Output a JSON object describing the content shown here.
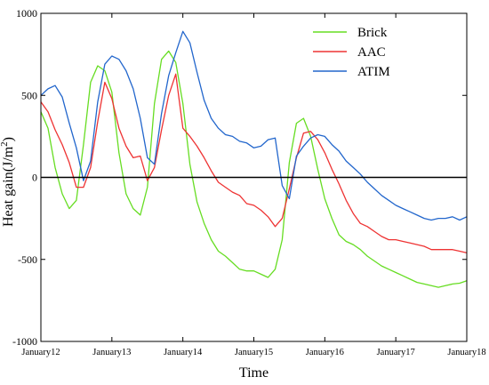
{
  "chart_data": {
    "type": "line",
    "title": "",
    "xlabel": "Time",
    "ylabel": "Heat gain(J/m²)",
    "ylabel_base": "Heat gain(J/m",
    "ylabel_sup": "2",
    "ylabel_tail": ")",
    "xlim": [
      12,
      18
    ],
    "ylim": [
      -1000,
      1000
    ],
    "yticks": [
      -1000,
      -500,
      0,
      500,
      1000
    ],
    "yticks_text": [
      "-1000",
      "-500",
      "0",
      "500",
      "1000"
    ],
    "xticks": [
      12,
      13,
      14,
      15,
      16,
      17,
      18
    ],
    "xticks_text": [
      "January12",
      "January13",
      "January14",
      "January15",
      "January16",
      "January17",
      "January18"
    ],
    "zero_line": true,
    "grid": false,
    "legend_position": "top-right",
    "series": [
      {
        "name": "Brick",
        "color": "#66dd22",
        "x": [
          12.0,
          12.1,
          12.2,
          12.3,
          12.4,
          12.5,
          12.6,
          12.7,
          12.8,
          12.9,
          13.0,
          13.1,
          13.2,
          13.3,
          13.4,
          13.5,
          13.6,
          13.7,
          13.8,
          13.9,
          14.0,
          14.1,
          14.2,
          14.3,
          14.4,
          14.5,
          14.6,
          14.7,
          14.8,
          14.9,
          15.0,
          15.1,
          15.2,
          15.3,
          15.4,
          15.5,
          15.6,
          15.7,
          15.8,
          15.9,
          16.0,
          16.1,
          16.2,
          16.3,
          16.4,
          16.5,
          16.6,
          16.7,
          16.8,
          16.9,
          17.0,
          17.1,
          17.2,
          17.3,
          17.4,
          17.5,
          17.6,
          17.7,
          17.8,
          17.9,
          18.0
        ],
        "values": [
          400,
          300,
          60,
          -100,
          -190,
          -140,
          200,
          580,
          680,
          650,
          520,
          150,
          -100,
          -190,
          -230,
          -60,
          450,
          720,
          770,
          700,
          450,
          80,
          -150,
          -280,
          -380,
          -450,
          -480,
          -520,
          -560,
          -570,
          -570,
          -590,
          -610,
          -560,
          -380,
          90,
          330,
          360,
          250,
          50,
          -130,
          -250,
          -350,
          -390,
          -410,
          -440,
          -480,
          -510,
          -540,
          -560,
          -580,
          -600,
          -620,
          -640,
          -650,
          -660,
          -670,
          -660,
          -650,
          -645,
          -630
        ]
      },
      {
        "name": "AAC",
        "color": "#ee3333",
        "x": [
          12.0,
          12.1,
          12.2,
          12.3,
          12.4,
          12.5,
          12.6,
          12.7,
          12.8,
          12.9,
          13.0,
          13.1,
          13.2,
          13.3,
          13.4,
          13.5,
          13.6,
          13.7,
          13.8,
          13.9,
          14.0,
          14.1,
          14.2,
          14.3,
          14.4,
          14.5,
          14.6,
          14.7,
          14.8,
          14.9,
          15.0,
          15.1,
          15.2,
          15.3,
          15.4,
          15.5,
          15.6,
          15.7,
          15.8,
          15.9,
          16.0,
          16.1,
          16.2,
          16.3,
          16.4,
          16.5,
          16.6,
          16.7,
          16.8,
          16.9,
          17.0,
          17.1,
          17.2,
          17.3,
          17.4,
          17.5,
          17.6,
          17.7,
          17.8,
          17.9,
          18.0
        ],
        "values": [
          460,
          400,
          290,
          200,
          90,
          -60,
          -60,
          60,
          340,
          580,
          480,
          300,
          190,
          120,
          130,
          -20,
          60,
          290,
          500,
          630,
          300,
          250,
          190,
          120,
          40,
          -30,
          -60,
          -90,
          -110,
          -160,
          -170,
          -200,
          -240,
          -300,
          -250,
          -70,
          120,
          270,
          280,
          230,
          150,
          50,
          -40,
          -140,
          -220,
          -280,
          -300,
          -330,
          -360,
          -380,
          -380,
          -390,
          -400,
          -410,
          -420,
          -440,
          -440,
          -440,
          -440,
          -450,
          -460
        ]
      },
      {
        "name": "ATIM",
        "color": "#2266cc",
        "x": [
          12.0,
          12.1,
          12.2,
          12.3,
          12.4,
          12.5,
          12.6,
          12.7,
          12.8,
          12.9,
          13.0,
          13.1,
          13.2,
          13.3,
          13.4,
          13.5,
          13.6,
          13.7,
          13.8,
          13.9,
          14.0,
          14.1,
          14.2,
          14.3,
          14.4,
          14.5,
          14.6,
          14.7,
          14.8,
          14.9,
          15.0,
          15.1,
          15.2,
          15.3,
          15.4,
          15.5,
          15.6,
          15.7,
          15.8,
          15.9,
          16.0,
          16.1,
          16.2,
          16.3,
          16.4,
          16.5,
          16.6,
          16.7,
          16.8,
          16.9,
          17.0,
          17.1,
          17.2,
          17.3,
          17.4,
          17.5,
          17.6,
          17.7,
          17.8,
          17.9,
          18.0
        ],
        "values": [
          500,
          540,
          560,
          490,
          330,
          180,
          -20,
          100,
          460,
          690,
          740,
          720,
          650,
          540,
          360,
          120,
          80,
          390,
          620,
          760,
          890,
          820,
          640,
          470,
          360,
          300,
          260,
          250,
          220,
          210,
          180,
          190,
          230,
          240,
          -50,
          -130,
          130,
          190,
          240,
          260,
          250,
          200,
          160,
          100,
          60,
          20,
          -30,
          -70,
          -110,
          -140,
          -170,
          -190,
          -210,
          -230,
          -250,
          -260,
          -250,
          -250,
          -240,
          -260,
          -240
        ]
      }
    ]
  }
}
